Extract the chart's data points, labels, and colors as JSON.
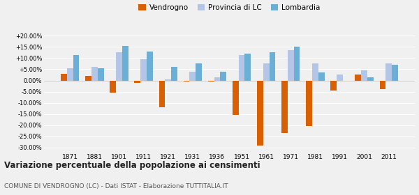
{
  "years": [
    1871,
    1881,
    1901,
    1911,
    1921,
    1931,
    1936,
    1951,
    1961,
    1971,
    1981,
    1991,
    2001,
    2011
  ],
  "vendrogno": [
    3.0,
    2.0,
    -5.5,
    -1.0,
    -12.0,
    -0.5,
    -0.5,
    -15.5,
    -29.0,
    -23.5,
    -20.5,
    -4.5,
    2.5,
    -4.0
  ],
  "provincia_lc": [
    5.5,
    6.0,
    12.5,
    9.5,
    0.5,
    4.0,
    1.5,
    11.5,
    7.5,
    13.5,
    7.5,
    2.5,
    4.5,
    7.5
  ],
  "lombardia": [
    11.5,
    5.5,
    15.5,
    13.0,
    6.0,
    7.5,
    4.0,
    12.0,
    12.5,
    15.0,
    3.5,
    -0.2,
    1.5,
    7.0
  ],
  "vendrogno_color": "#d95f02",
  "provincia_lc_color": "#b3c6e7",
  "lombardia_color": "#6baed6",
  "title": "Variazione percentuale della popolazione ai censimenti",
  "subtitle": "COMUNE DI VENDROGNO (LC) - Dati ISTAT - Elaborazione TUTTITALIA.IT",
  "legend_labels": [
    "Vendrogno",
    "Provincia di LC",
    "Lombardia"
  ],
  "ylim": [
    -32,
    22
  ],
  "yticks": [
    -30,
    -25,
    -20,
    -15,
    -10,
    -5,
    0,
    5,
    10,
    15,
    20
  ],
  "ytick_labels": [
    "-30.00%",
    "-25.00%",
    "-20.00%",
    "-15.00%",
    "-10.00%",
    "-5.00%",
    "0.00%",
    "+5.00%",
    "+10.00%",
    "+15.00%",
    "+20.00%"
  ],
  "background_color": "#f0f0f0",
  "plot_bg_color": "#f0f0f0",
  "grid_color": "#ffffff",
  "bar_width": 0.25
}
